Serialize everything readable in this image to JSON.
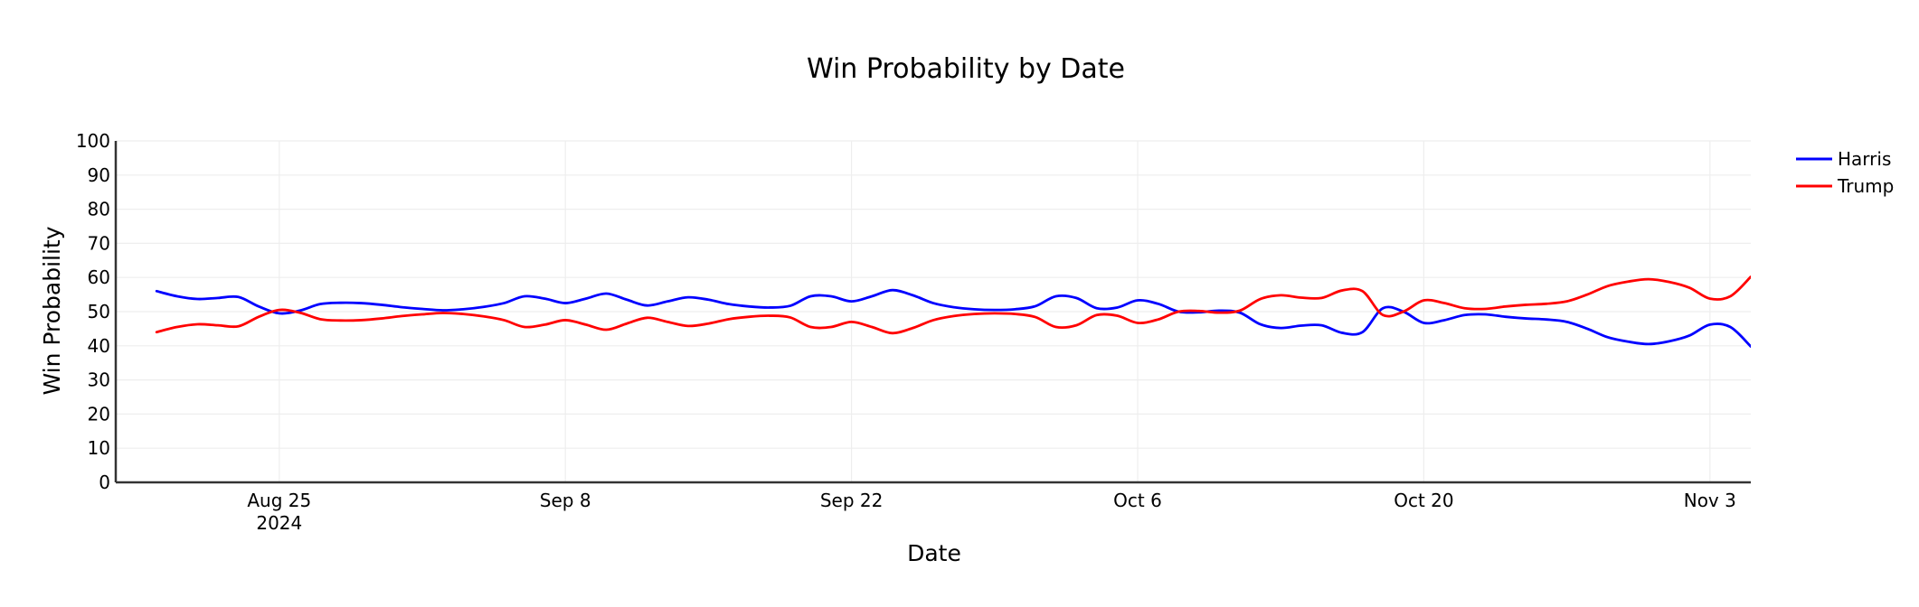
{
  "chart_data": {
    "type": "line",
    "title": "Win Probability by Date",
    "xlabel": "Date",
    "ylabel": "Win Probability",
    "ylim": [
      0,
      100
    ],
    "yticks": [
      0,
      10,
      20,
      30,
      40,
      50,
      60,
      70,
      80,
      90,
      100
    ],
    "xlim": [
      "2024-08-17",
      "2024-11-05"
    ],
    "xticks": [
      {
        "date": "2024-08-25",
        "label": "Aug 25",
        "sublabel": "2024"
      },
      {
        "date": "2024-09-08",
        "label": "Sep 8",
        "sublabel": ""
      },
      {
        "date": "2024-09-22",
        "label": "Sep 22",
        "sublabel": ""
      },
      {
        "date": "2024-10-06",
        "label": "Oct 6",
        "sublabel": ""
      },
      {
        "date": "2024-10-20",
        "label": "Oct 20",
        "sublabel": ""
      },
      {
        "date": "2024-11-03",
        "label": "Nov 3",
        "sublabel": ""
      }
    ],
    "grid": true,
    "legend_position": "top-right",
    "series": [
      {
        "name": "Harris",
        "color": "#0000ff",
        "points": [
          [
            "2024-08-19",
            56
          ],
          [
            "2024-08-20",
            54.5
          ],
          [
            "2024-08-21",
            53.7
          ],
          [
            "2024-08-22",
            54
          ],
          [
            "2024-08-23",
            54.3
          ],
          [
            "2024-08-24",
            51.5
          ],
          [
            "2024-08-25",
            49.5
          ],
          [
            "2024-08-26",
            50.3
          ],
          [
            "2024-08-27",
            52.2
          ],
          [
            "2024-08-28",
            52.6
          ],
          [
            "2024-08-29",
            52.5
          ],
          [
            "2024-08-30",
            52
          ],
          [
            "2024-08-31",
            51.3
          ],
          [
            "2024-09-01",
            50.8
          ],
          [
            "2024-09-02",
            50.4
          ],
          [
            "2024-09-03",
            50.7
          ],
          [
            "2024-09-04",
            51.4
          ],
          [
            "2024-09-05",
            52.5
          ],
          [
            "2024-09-06",
            54.5
          ],
          [
            "2024-09-07",
            53.8
          ],
          [
            "2024-09-08",
            52.5
          ],
          [
            "2024-09-09",
            53.8
          ],
          [
            "2024-09-10",
            55.3
          ],
          [
            "2024-09-11",
            53.5
          ],
          [
            "2024-09-12",
            51.8
          ],
          [
            "2024-09-13",
            53
          ],
          [
            "2024-09-14",
            54.2
          ],
          [
            "2024-09-15",
            53.5
          ],
          [
            "2024-09-16",
            52.2
          ],
          [
            "2024-09-17",
            51.5
          ],
          [
            "2024-09-18",
            51.2
          ],
          [
            "2024-09-19",
            51.7
          ],
          [
            "2024-09-20",
            54.5
          ],
          [
            "2024-09-21",
            54.5
          ],
          [
            "2024-09-22",
            53
          ],
          [
            "2024-09-23",
            54.5
          ],
          [
            "2024-09-24",
            56.3
          ],
          [
            "2024-09-25",
            54.8
          ],
          [
            "2024-09-26",
            52.5
          ],
          [
            "2024-09-27",
            51.3
          ],
          [
            "2024-09-28",
            50.7
          ],
          [
            "2024-09-29",
            50.5
          ],
          [
            "2024-09-30",
            50.7
          ],
          [
            "2024-10-01",
            51.6
          ],
          [
            "2024-10-02",
            54.5
          ],
          [
            "2024-10-03",
            54
          ],
          [
            "2024-10-04",
            51
          ],
          [
            "2024-10-05",
            51.2
          ],
          [
            "2024-10-06",
            53.3
          ],
          [
            "2024-10-07",
            52.3
          ],
          [
            "2024-10-08",
            50
          ],
          [
            "2024-10-09",
            49.8
          ],
          [
            "2024-10-10",
            50.3
          ],
          [
            "2024-10-11",
            49.7
          ],
          [
            "2024-10-12",
            46.3
          ],
          [
            "2024-10-13",
            45.2
          ],
          [
            "2024-10-14",
            45.9
          ],
          [
            "2024-10-15",
            46
          ],
          [
            "2024-10-16",
            43.8
          ],
          [
            "2024-10-17",
            44
          ],
          [
            "2024-10-18",
            51
          ],
          [
            "2024-10-19",
            50
          ],
          [
            "2024-10-20",
            46.7
          ],
          [
            "2024-10-21",
            47.5
          ],
          [
            "2024-10-22",
            49
          ],
          [
            "2024-10-23",
            49.2
          ],
          [
            "2024-10-24",
            48.5
          ],
          [
            "2024-10-25",
            48
          ],
          [
            "2024-10-26",
            47.7
          ],
          [
            "2024-10-27",
            47
          ],
          [
            "2024-10-28",
            45
          ],
          [
            "2024-10-29",
            42.5
          ],
          [
            "2024-10-30",
            41.2
          ],
          [
            "2024-10-31",
            40.5
          ],
          [
            "2024-11-01",
            41.3
          ],
          [
            "2024-11-02",
            43
          ],
          [
            "2024-11-03",
            46.2
          ],
          [
            "2024-11-04",
            45.5
          ],
          [
            "2024-11-05",
            39.8
          ]
        ]
      },
      {
        "name": "Trump",
        "color": "#ff0000",
        "points": [
          [
            "2024-08-19",
            44
          ],
          [
            "2024-08-20",
            45.5
          ],
          [
            "2024-08-21",
            46.3
          ],
          [
            "2024-08-22",
            46
          ],
          [
            "2024-08-23",
            45.7
          ],
          [
            "2024-08-24",
            48.5
          ],
          [
            "2024-08-25",
            50.5
          ],
          [
            "2024-08-26",
            49.7
          ],
          [
            "2024-08-27",
            47.8
          ],
          [
            "2024-08-28",
            47.4
          ],
          [
            "2024-08-29",
            47.5
          ],
          [
            "2024-08-30",
            48
          ],
          [
            "2024-08-31",
            48.7
          ],
          [
            "2024-09-01",
            49.2
          ],
          [
            "2024-09-02",
            49.6
          ],
          [
            "2024-09-03",
            49.3
          ],
          [
            "2024-09-04",
            48.6
          ],
          [
            "2024-09-05",
            47.5
          ],
          [
            "2024-09-06",
            45.5
          ],
          [
            "2024-09-07",
            46.2
          ],
          [
            "2024-09-08",
            47.5
          ],
          [
            "2024-09-09",
            46.2
          ],
          [
            "2024-09-10",
            44.7
          ],
          [
            "2024-09-11",
            46.5
          ],
          [
            "2024-09-12",
            48.2
          ],
          [
            "2024-09-13",
            47
          ],
          [
            "2024-09-14",
            45.8
          ],
          [
            "2024-09-15",
            46.5
          ],
          [
            "2024-09-16",
            47.8
          ],
          [
            "2024-09-17",
            48.5
          ],
          [
            "2024-09-18",
            48.8
          ],
          [
            "2024-09-19",
            48.3
          ],
          [
            "2024-09-20",
            45.5
          ],
          [
            "2024-09-21",
            45.5
          ],
          [
            "2024-09-22",
            47
          ],
          [
            "2024-09-23",
            45.5
          ],
          [
            "2024-09-24",
            43.7
          ],
          [
            "2024-09-25",
            45.2
          ],
          [
            "2024-09-26",
            47.5
          ],
          [
            "2024-09-27",
            48.7
          ],
          [
            "2024-09-28",
            49.3
          ],
          [
            "2024-09-29",
            49.5
          ],
          [
            "2024-09-30",
            49.3
          ],
          [
            "2024-10-01",
            48.4
          ],
          [
            "2024-10-02",
            45.5
          ],
          [
            "2024-10-03",
            46
          ],
          [
            "2024-10-04",
            49
          ],
          [
            "2024-10-05",
            48.8
          ],
          [
            "2024-10-06",
            46.7
          ],
          [
            "2024-10-07",
            47.7
          ],
          [
            "2024-10-08",
            50
          ],
          [
            "2024-10-09",
            50.2
          ],
          [
            "2024-10-10",
            49.7
          ],
          [
            "2024-10-11",
            50.3
          ],
          [
            "2024-10-12",
            53.7
          ],
          [
            "2024-10-13",
            54.8
          ],
          [
            "2024-10-14",
            54.1
          ],
          [
            "2024-10-15",
            54
          ],
          [
            "2024-10-16",
            56.2
          ],
          [
            "2024-10-17",
            56
          ],
          [
            "2024-10-18",
            49
          ],
          [
            "2024-10-19",
            50
          ],
          [
            "2024-10-20",
            53.3
          ],
          [
            "2024-10-21",
            52.5
          ],
          [
            "2024-10-22",
            51
          ],
          [
            "2024-10-23",
            50.8
          ],
          [
            "2024-10-24",
            51.5
          ],
          [
            "2024-10-25",
            52
          ],
          [
            "2024-10-26",
            52.3
          ],
          [
            "2024-10-27",
            53
          ],
          [
            "2024-10-28",
            55
          ],
          [
            "2024-10-29",
            57.5
          ],
          [
            "2024-10-30",
            58.8
          ],
          [
            "2024-10-31",
            59.5
          ],
          [
            "2024-11-01",
            58.7
          ],
          [
            "2024-11-02",
            57
          ],
          [
            "2024-11-03",
            53.8
          ],
          [
            "2024-11-04",
            54.5
          ],
          [
            "2024-11-05",
            60.2
          ]
        ]
      }
    ]
  }
}
